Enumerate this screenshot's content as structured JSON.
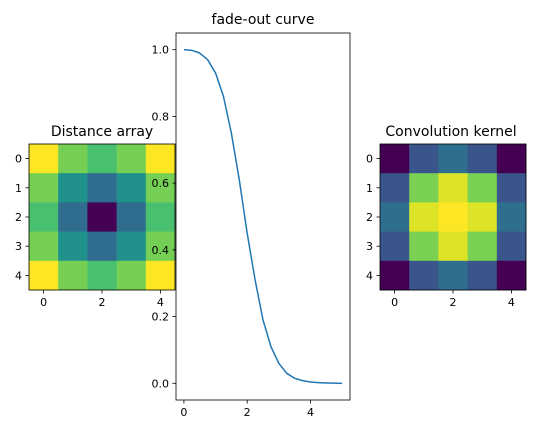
{
  "chart_data": [
    {
      "type": "heatmap",
      "title": "Distance array",
      "colormap": "viridis",
      "shape": [
        5,
        5
      ],
      "values": [
        [
          2.83,
          2.24,
          2.0,
          2.24,
          2.83
        ],
        [
          2.24,
          1.41,
          1.0,
          1.41,
          2.24
        ],
        [
          2.0,
          1.0,
          0.0,
          1.0,
          2.0
        ],
        [
          2.24,
          1.41,
          1.0,
          1.41,
          2.24
        ],
        [
          2.83,
          2.24,
          2.0,
          2.24,
          2.83
        ]
      ],
      "xticks": [
        0,
        2,
        4
      ],
      "yticks": [
        0,
        1,
        2,
        3,
        4
      ]
    },
    {
      "type": "line",
      "title": "fade-out curve",
      "xlim": [
        -0.25,
        5.25
      ],
      "ylim": [
        -0.05,
        1.05
      ],
      "xticks": [
        0,
        2,
        4
      ],
      "yticks": [
        "0.0",
        "0.2",
        "0.4",
        "0.6",
        "0.8",
        "1.0"
      ],
      "color": "#1f77b4",
      "x": [
        0.0,
        0.25,
        0.5,
        0.75,
        1.0,
        1.25,
        1.5,
        1.75,
        2.0,
        2.25,
        2.5,
        2.75,
        3.0,
        3.25,
        3.5,
        3.75,
        4.0,
        4.25,
        4.5,
        4.75,
        5.0
      ],
      "y": [
        1.0,
        0.998,
        0.99,
        0.97,
        0.93,
        0.86,
        0.75,
        0.61,
        0.45,
        0.31,
        0.19,
        0.11,
        0.06,
        0.03,
        0.015,
        0.008,
        0.004,
        0.002,
        0.001,
        0.0005,
        0.0
      ]
    },
    {
      "type": "heatmap",
      "title": "Convolution kernel",
      "colormap": "viridis",
      "shape": [
        5,
        5
      ],
      "values": [
        [
          0.2,
          0.41,
          0.49,
          0.41,
          0.2
        ],
        [
          0.41,
          0.84,
          0.96,
          0.84,
          0.41
        ],
        [
          0.49,
          0.96,
          1.0,
          0.96,
          0.49
        ],
        [
          0.41,
          0.84,
          0.96,
          0.84,
          0.41
        ],
        [
          0.2,
          0.41,
          0.49,
          0.41,
          0.2
        ]
      ],
      "xticks": [
        0,
        2,
        4
      ],
      "yticks": [
        0,
        1,
        2,
        3,
        4
      ]
    }
  ]
}
